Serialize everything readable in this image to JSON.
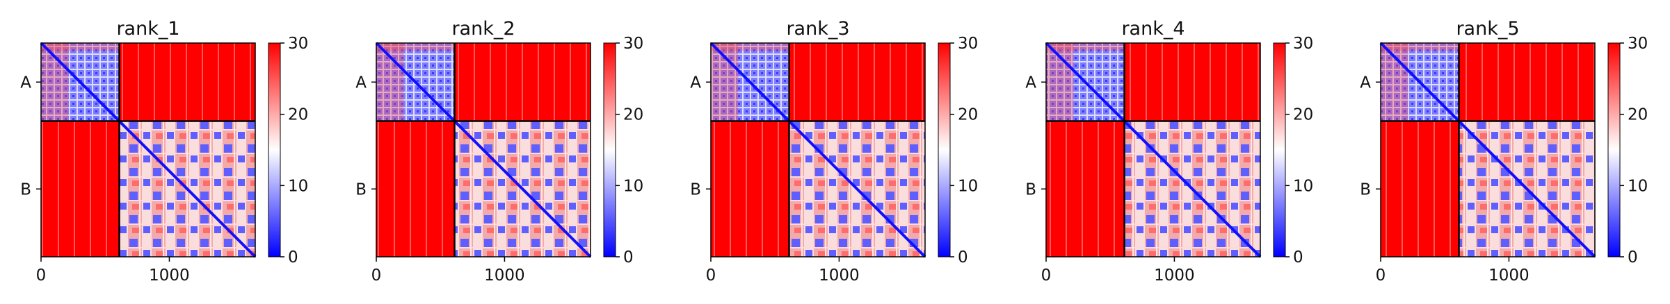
{
  "chart_data": {
    "type": "heatmap",
    "value_unit": "PAE",
    "colormap": [
      "#0000ff",
      "#ffffff",
      "#ff0000"
    ],
    "color_range": [
      0,
      30
    ],
    "colorbar_ticks": [
      "0",
      "10",
      "20",
      "30"
    ],
    "x_ticks": [
      "0",
      "1000"
    ],
    "x_range": [
      0,
      1670
    ],
    "chain_labels": [
      "A",
      "B"
    ],
    "chain_boundary": 610,
    "grid": false,
    "panels": [
      {
        "title": "rank_1"
      },
      {
        "title": "rank_2"
      },
      {
        "title": "rank_3"
      },
      {
        "title": "rank_4"
      },
      {
        "title": "rank_5"
      }
    ]
  }
}
